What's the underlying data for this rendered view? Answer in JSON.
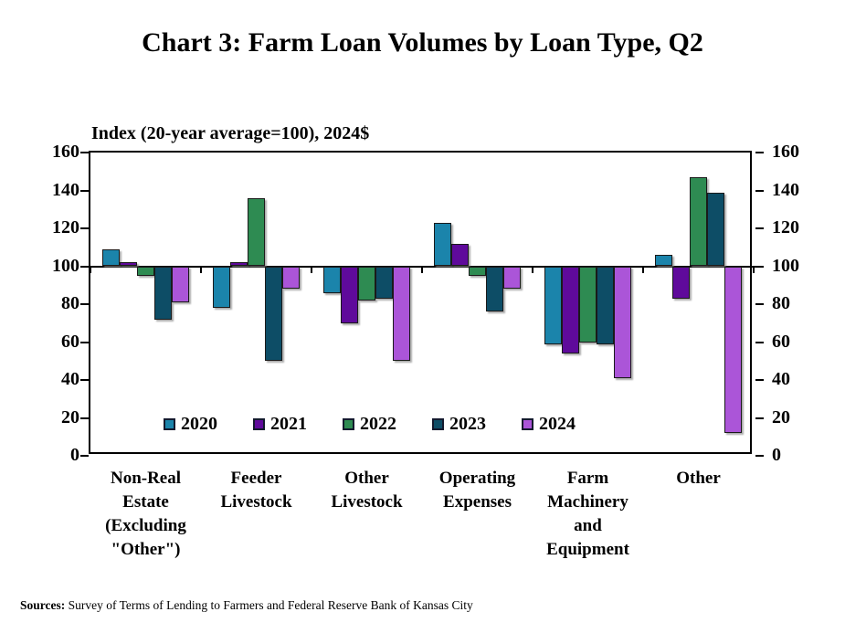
{
  "title": "Chart 3: Farm Loan Volumes by Loan Type, Q2",
  "y_axis_title": "Index (20-year average=100), 2024$",
  "sources": {
    "label": "Sources:",
    "text": " Survey of Terms of Lending to Farmers and Federal Reserve Bank of Kansas City"
  },
  "colors": {
    "s2020": "#1b84ab",
    "s2021": "#5f0a9b",
    "s2022": "#2e8b52",
    "s2023": "#0d4d66",
    "s2024": "#ab55d8",
    "axis": "#000000",
    "bar_outline": "#1a1a1a"
  },
  "chart_data": {
    "type": "bar",
    "title": "Chart 3: Farm Loan Volumes by Loan Type, Q2",
    "ylabel": "Index (20-year average=100), 2024$",
    "xlabel": "",
    "ylim": [
      0,
      160
    ],
    "yticks": [
      0,
      20,
      40,
      60,
      80,
      100,
      120,
      140,
      160
    ],
    "baseline": 100,
    "grid": false,
    "legend_position": "bottom-inside",
    "axis_labels_both_sides": true,
    "categories": [
      {
        "label": "Non-Real Estate (Excluding \"Other\")",
        "lines": [
          "Non-Real",
          "Estate",
          "(Excluding",
          "\"Other\")"
        ]
      },
      {
        "label": "Feeder Livestock",
        "lines": [
          "Feeder",
          "Livestock"
        ]
      },
      {
        "label": "Other Livestock",
        "lines": [
          "Other",
          "Livestock"
        ]
      },
      {
        "label": "Operating Expenses",
        "lines": [
          "Operating",
          "Expenses"
        ]
      },
      {
        "label": "Farm Machinery and Equipment",
        "lines": [
          "Farm",
          "Machinery",
          "and",
          "Equipment"
        ]
      },
      {
        "label": "Other",
        "lines": [
          "Other"
        ]
      }
    ],
    "series": [
      {
        "name": "2020",
        "color": "#1b84ab",
        "values": [
          109,
          78,
          86,
          123,
          59,
          106
        ]
      },
      {
        "name": "2021",
        "color": "#5f0a9b",
        "values": [
          102,
          102,
          70,
          112,
          54,
          83
        ]
      },
      {
        "name": "2022",
        "color": "#2e8b52",
        "values": [
          95,
          136,
          82,
          95,
          60,
          147
        ]
      },
      {
        "name": "2023",
        "color": "#0d4d66",
        "values": [
          72,
          50,
          83,
          76,
          59,
          139
        ]
      },
      {
        "name": "2024",
        "color": "#ab55d8",
        "values": [
          81,
          88,
          50,
          88,
          41,
          12
        ]
      }
    ]
  }
}
